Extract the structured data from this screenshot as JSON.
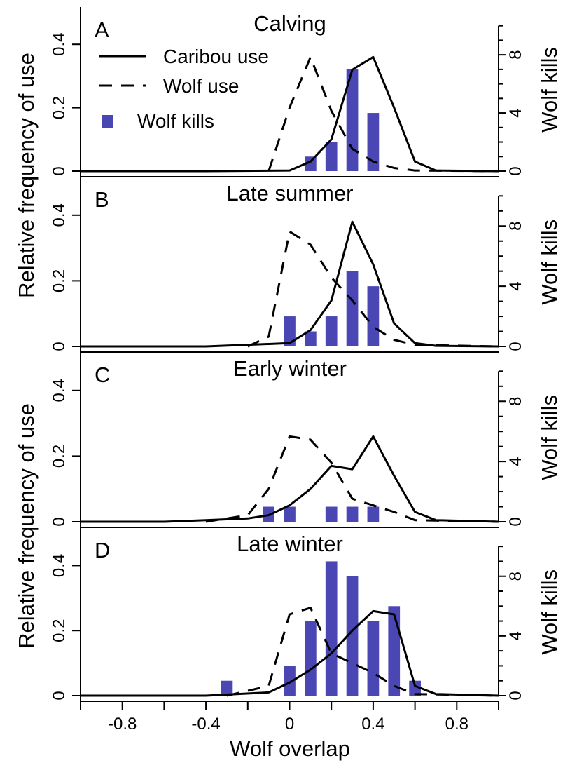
{
  "chart_data": {
    "type": "line",
    "xlabel": "Wolf overlap",
    "ylabel_left": "Relative frequency of use",
    "ylabel_right": "Wolf kills",
    "xlim": [
      -1.0,
      1.0
    ],
    "x_ticks": [
      -0.8,
      -0.4,
      0,
      0.4,
      0.8
    ],
    "x_tick_labels": [
      "-0.8",
      "-0.4",
      "0",
      "0.4",
      "0.8"
    ],
    "y_left_ticks": [
      0,
      0.2,
      0.4
    ],
    "y_left_tick_labels": [
      "0",
      "0.2",
      "0.4"
    ],
    "y_right_ticks": [
      0,
      4,
      8
    ],
    "y_right_tick_labels": [
      "0",
      "4",
      "8"
    ],
    "ylim_left": [
      0,
      0.5
    ],
    "ylim_right": [
      0,
      10.9
    ],
    "legend": {
      "placement": "top-left",
      "entries": [
        {
          "label": "Caribou use",
          "style": "solid"
        },
        {
          "label": "Wolf use",
          "style": "dashed"
        },
        {
          "label": "Wolf kills",
          "style": "bar"
        }
      ]
    },
    "bar_color": "#4a47b4",
    "line_color": "#000000",
    "panels": [
      {
        "label": "A",
        "title": "Calving",
        "caribou_use": [
          [
            -1.0,
            0
          ],
          [
            -0.4,
            0
          ],
          [
            0,
            0.002
          ],
          [
            0.1,
            0.03
          ],
          [
            0.2,
            0.1
          ],
          [
            0.3,
            0.32
          ],
          [
            0.4,
            0.36
          ],
          [
            0.5,
            0.2
          ],
          [
            0.6,
            0.03
          ],
          [
            0.7,
            0.002
          ],
          [
            1.0,
            0
          ]
        ],
        "wolf_use": [
          [
            -0.1,
            0
          ],
          [
            0,
            0.2
          ],
          [
            0.1,
            0.36
          ],
          [
            0.2,
            0.19
          ],
          [
            0.3,
            0.07
          ],
          [
            0.4,
            0.03
          ],
          [
            0.5,
            0.01
          ],
          [
            0.6,
            0.002
          ],
          [
            1.0,
            0
          ]
        ],
        "kills_x": [
          0.1,
          0.2,
          0.3,
          0.4
        ],
        "kills": [
          1,
          2,
          7,
          4
        ]
      },
      {
        "label": "B",
        "title": "Late summer",
        "caribou_use": [
          [
            -1.0,
            0
          ],
          [
            -0.4,
            0
          ],
          [
            0,
            0.01
          ],
          [
            0.1,
            0.05
          ],
          [
            0.2,
            0.14
          ],
          [
            0.3,
            0.38
          ],
          [
            0.4,
            0.25
          ],
          [
            0.5,
            0.07
          ],
          [
            0.6,
            0.01
          ],
          [
            0.7,
            0.002
          ],
          [
            1.0,
            0
          ]
        ],
        "wolf_use": [
          [
            -0.2,
            0
          ],
          [
            -0.1,
            0.03
          ],
          [
            0,
            0.35
          ],
          [
            0.1,
            0.31
          ],
          [
            0.2,
            0.21
          ],
          [
            0.3,
            0.14
          ],
          [
            0.4,
            0.06
          ],
          [
            0.5,
            0.02
          ],
          [
            0.6,
            0.005
          ],
          [
            1.0,
            0
          ]
        ],
        "kills_x": [
          0,
          0.1,
          0.2,
          0.3,
          0.4
        ],
        "kills": [
          2,
          1,
          2,
          5,
          4
        ]
      },
      {
        "label": "C",
        "title": "Early winter",
        "caribou_use": [
          [
            -1.0,
            0
          ],
          [
            -0.6,
            0
          ],
          [
            -0.4,
            0.005
          ],
          [
            -0.2,
            0.01
          ],
          [
            -0.1,
            0.02
          ],
          [
            0,
            0.05
          ],
          [
            0.1,
            0.1
          ],
          [
            0.2,
            0.17
          ],
          [
            0.3,
            0.16
          ],
          [
            0.4,
            0.26
          ],
          [
            0.5,
            0.14
          ],
          [
            0.6,
            0.03
          ],
          [
            0.7,
            0.005
          ],
          [
            1.0,
            0
          ]
        ],
        "wolf_use": [
          [
            -0.4,
            0
          ],
          [
            -0.2,
            0.02
          ],
          [
            -0.1,
            0.1
          ],
          [
            0,
            0.26
          ],
          [
            0.1,
            0.25
          ],
          [
            0.2,
            0.18
          ],
          [
            0.3,
            0.07
          ],
          [
            0.4,
            0.05
          ],
          [
            0.5,
            0.03
          ],
          [
            0.6,
            0.005
          ],
          [
            1.0,
            0
          ]
        ],
        "kills_x": [
          -0.1,
          0,
          0.2,
          0.3,
          0.4
        ],
        "kills": [
          1,
          1,
          1,
          1,
          1
        ]
      },
      {
        "label": "D",
        "title": "Late winter",
        "caribou_use": [
          [
            -1.0,
            0
          ],
          [
            -0.4,
            0
          ],
          [
            -0.1,
            0.01
          ],
          [
            0,
            0.04
          ],
          [
            0.1,
            0.08
          ],
          [
            0.2,
            0.13
          ],
          [
            0.3,
            0.2
          ],
          [
            0.4,
            0.26
          ],
          [
            0.5,
            0.25
          ],
          [
            0.6,
            0.03
          ],
          [
            0.7,
            0.005
          ],
          [
            1.0,
            0
          ]
        ],
        "wolf_use": [
          [
            -0.3,
            0
          ],
          [
            -0.1,
            0.03
          ],
          [
            0,
            0.25
          ],
          [
            0.1,
            0.27
          ],
          [
            0.2,
            0.13
          ],
          [
            0.3,
            0.1
          ],
          [
            0.4,
            0.07
          ],
          [
            0.5,
            0.03
          ],
          [
            0.6,
            0.005
          ],
          [
            1.0,
            0
          ]
        ],
        "kills_x": [
          -0.3,
          0,
          0.1,
          0.2,
          0.3,
          0.4,
          0.5,
          0.6
        ],
        "kills": [
          1,
          2,
          5,
          9,
          8,
          5,
          6,
          1
        ]
      }
    ]
  }
}
